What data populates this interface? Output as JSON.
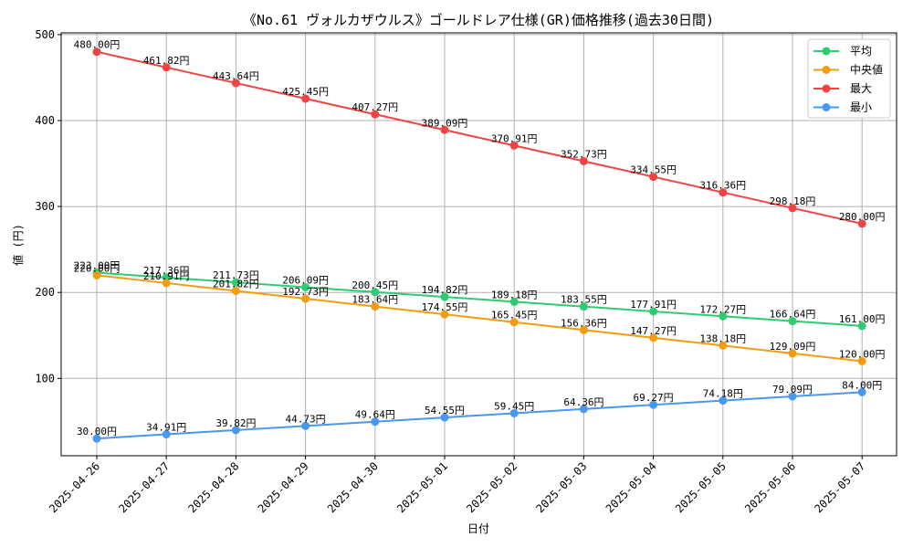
{
  "chart_data": {
    "type": "line",
    "title": "《No.61 ヴォルカザウルス》ゴールドレア仕様(GR)価格推移(過去30日間)",
    "xlabel": "日付",
    "ylabel": "値 (円)",
    "categories": [
      "2025-04-26",
      "2025-04-27",
      "2025-04-28",
      "2025-04-29",
      "2025-04-30",
      "2025-05-01",
      "2025-05-02",
      "2025-05-03",
      "2025-05-04",
      "2025-05-05",
      "2025-05-06",
      "2025-05-07"
    ],
    "ylim": [
      10,
      502
    ],
    "yticks": [
      100,
      200,
      300,
      400,
      500
    ],
    "grid": true,
    "legend_position": "top-right",
    "series": [
      {
        "name": "平均",
        "color": "#2ecc71",
        "values": [
          223.0,
          217.36,
          211.73,
          206.09,
          200.45,
          194.82,
          189.18,
          183.55,
          177.91,
          172.27,
          166.64,
          161.0
        ],
        "labels": [
          "223.00円",
          "217.36円",
          "211.73円",
          "206.09円",
          "200.45円",
          "194.82円",
          "189.18円",
          "183.55円",
          "177.91円",
          "172.27円",
          "166.64円",
          "161.00円"
        ]
      },
      {
        "name": "中央値",
        "color": "#f39c12",
        "values": [
          220.0,
          210.91,
          201.82,
          192.73,
          183.64,
          174.55,
          165.45,
          156.36,
          147.27,
          138.18,
          129.09,
          120.0
        ],
        "labels": [
          "220.00円",
          "210.91円",
          "201.82円",
          "192.73円",
          "183.64円",
          "174.55円",
          "165.45円",
          "156.36円",
          "147.27円",
          "138.18円",
          "129.09円",
          "120.00円"
        ]
      },
      {
        "name": "最大",
        "color": "#f04444",
        "values": [
          480.0,
          461.82,
          443.64,
          425.45,
          407.27,
          389.09,
          370.91,
          352.73,
          334.55,
          316.36,
          298.18,
          280.0
        ],
        "labels": [
          "480.00円",
          "461.82円",
          "443.64円",
          "425.45円",
          "407.27円",
          "389.09円",
          "370.91円",
          "352.73円",
          "334.55円",
          "316.36円",
          "298.18円",
          "280.00円"
        ]
      },
      {
        "name": "最小",
        "color": "#4a97f0",
        "values": [
          30.0,
          34.91,
          39.82,
          44.73,
          49.64,
          54.55,
          59.45,
          64.36,
          69.27,
          74.18,
          79.09,
          84.0
        ],
        "labels": [
          "30.00円",
          "34.91円",
          "39.82円",
          "44.73円",
          "49.64円",
          "54.55円",
          "59.45円",
          "64.36円",
          "69.27円",
          "74.18円",
          "79.09円",
          "84.00円"
        ]
      }
    ]
  }
}
